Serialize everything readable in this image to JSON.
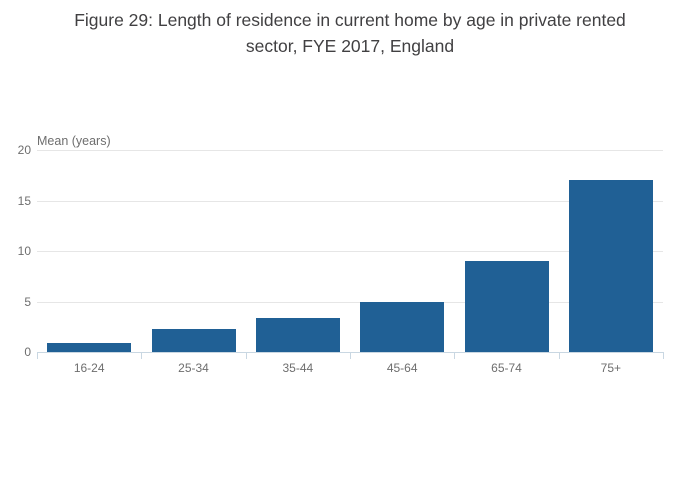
{
  "figure": {
    "title_full": "Figure 29: Length of residence in current home by age in private rented sector, FYE 2017, England"
  },
  "chart_data": {
    "type": "bar",
    "title": "Figure 29: Length of residence in current home by age in private rented sector, FYE 2017, England",
    "title_lines": [
      "Figure 29: Length of residence in current home by age in private rented",
      "sector, FYE 2017, England"
    ],
    "ylabel": "Mean (years)",
    "xlabel": "",
    "categories": [
      "16-24",
      "25-34",
      "35-44",
      "45-64",
      "65-74",
      "75+"
    ],
    "values": [
      0.9,
      2.3,
      3.4,
      5,
      9,
      17
    ],
    "ylim": [
      0,
      20
    ],
    "yticks": [
      0,
      5,
      10,
      15,
      20
    ],
    "grid": true,
    "legend": false
  },
  "colors": {
    "bar": "#206095",
    "grid": "#e6e6e6",
    "axis": "#c9d7e2",
    "tick_label": "#6e6e6e",
    "title": "#414042"
  }
}
